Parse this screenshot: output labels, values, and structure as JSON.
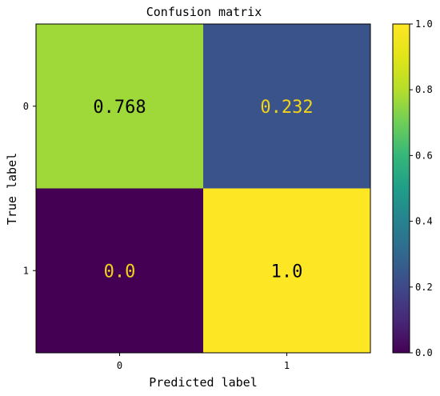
{
  "chart_data": {
    "type": "heatmap",
    "title": "Confusion matrix",
    "xlabel": "Predicted label",
    "ylabel": "True label",
    "x_categories": [
      "0",
      "1"
    ],
    "y_categories": [
      "0",
      "1"
    ],
    "matrix": [
      [
        0.768,
        0.232
      ],
      [
        0.0,
        1.0
      ]
    ],
    "cell_labels": [
      [
        "0.768",
        "0.232"
      ],
      [
        "0.0",
        "1.0"
      ]
    ],
    "colormap": "viridis",
    "colorbar": {
      "range": [
        0.0,
        1.0
      ],
      "ticks": [
        0.0,
        0.2,
        0.4,
        0.6,
        0.8,
        1.0
      ],
      "tick_labels": [
        "0.0",
        "0.2",
        "0.4",
        "0.6",
        "0.8",
        "1.0"
      ]
    },
    "text_colors": {
      "on_dark": "#f2d21b",
      "on_light": "#000000"
    }
  }
}
